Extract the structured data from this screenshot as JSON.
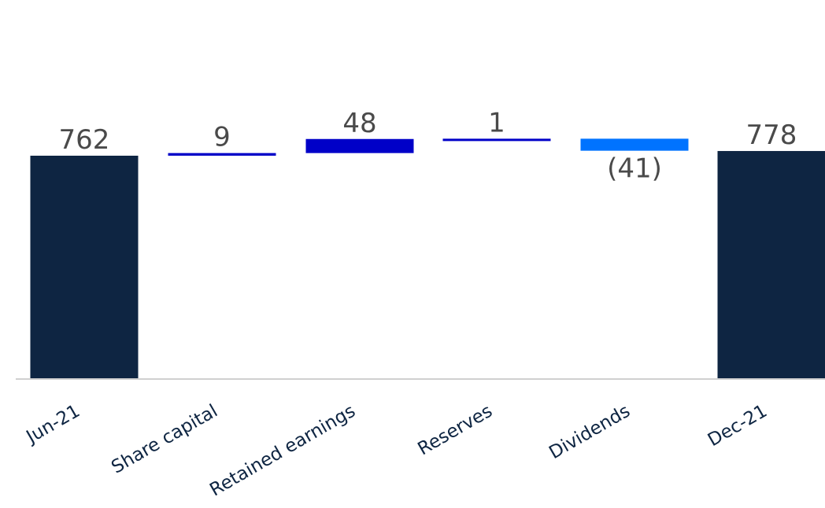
{
  "chart_data": {
    "type": "bar",
    "subtype": "waterfall",
    "title": "",
    "xlabel": "",
    "ylabel": "",
    "grid": false,
    "legend": "none",
    "categories": [
      "Jun-21",
      "Share capital",
      "Retained earnings",
      "Reserves",
      "Dividends",
      "Dec-21"
    ],
    "values": [
      762,
      9,
      48,
      1,
      -41,
      778
    ],
    "kinds": [
      "total",
      "change",
      "change",
      "change",
      "change",
      "total"
    ],
    "data_labels": [
      "762",
      "9",
      "48",
      "1",
      "(41)",
      "778"
    ],
    "colors": {
      "total": "#0e2542",
      "increase": "#0000c8",
      "decrease": "#0073ff",
      "axis": "#d0d0d0"
    }
  }
}
